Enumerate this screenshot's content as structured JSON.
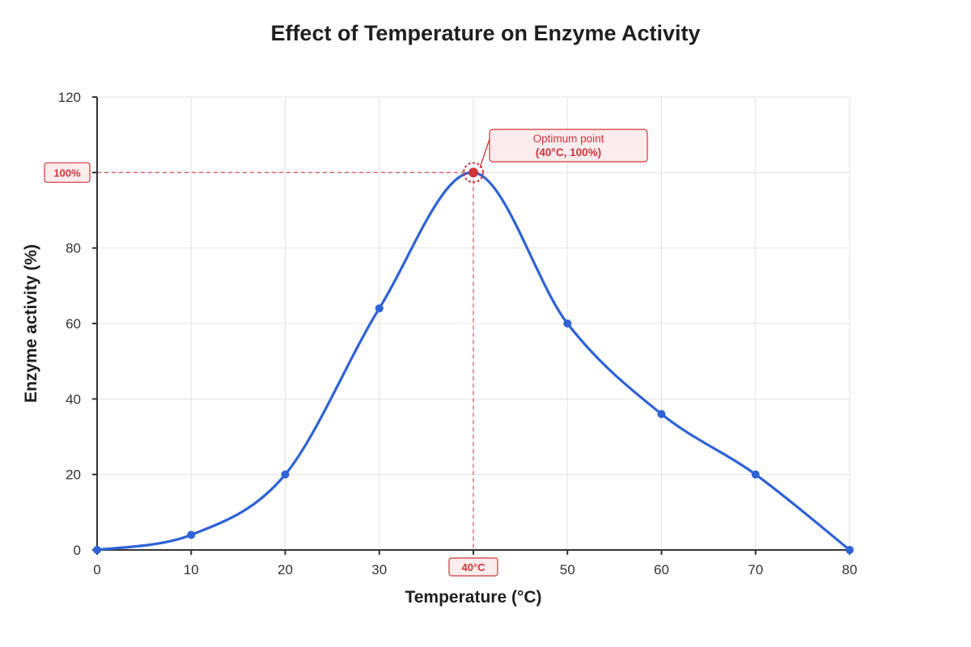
{
  "chart_data": {
    "type": "line",
    "title": "Effect of Temperature on Enzyme Activity",
    "xlabel": "Temperature (°C)",
    "ylabel": "Enzyme activity (%)",
    "x": [
      0,
      10,
      20,
      30,
      40,
      50,
      60,
      70,
      80
    ],
    "series": [
      {
        "values": [
          0,
          4,
          20,
          64,
          100,
          60,
          36,
          20,
          0
        ]
      }
    ],
    "xlim": [
      0,
      80
    ],
    "ylim": [
      0,
      120
    ],
    "xticks": [
      0,
      10,
      20,
      30,
      40,
      50,
      60,
      70,
      80
    ],
    "yticks": [
      0,
      20,
      40,
      60,
      80,
      100,
      120
    ],
    "grid": true,
    "optimum": {
      "x": 40,
      "y": 100,
      "label_line1": "Optimum point",
      "label_line2": "(40°C, 100%)",
      "x_badge": "40°C",
      "y_badge": "100%"
    },
    "colors": {
      "series": "#2e62d6",
      "highlight": "#d0333a",
      "highlight_fill": "#fdecec",
      "grid": "#e3e3e3",
      "axis": "#333333"
    }
  }
}
